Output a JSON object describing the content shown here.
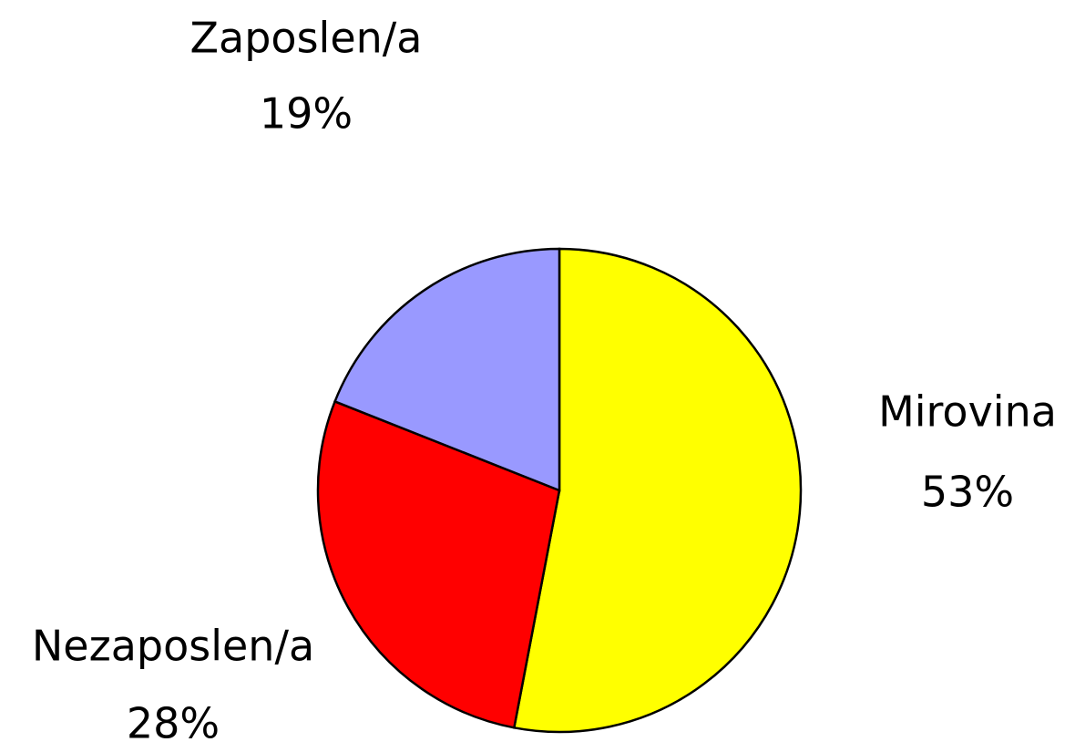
{
  "chart_data": {
    "type": "pie",
    "categories": [
      "Mirovina",
      "Nezaposlen/a",
      "Zaposlen/a"
    ],
    "values": [
      53,
      28,
      19
    ],
    "value_labels": [
      "53%",
      "28%",
      "19%"
    ],
    "colors": [
      "#ffff00",
      "#ff0000",
      "#9999ff"
    ]
  }
}
